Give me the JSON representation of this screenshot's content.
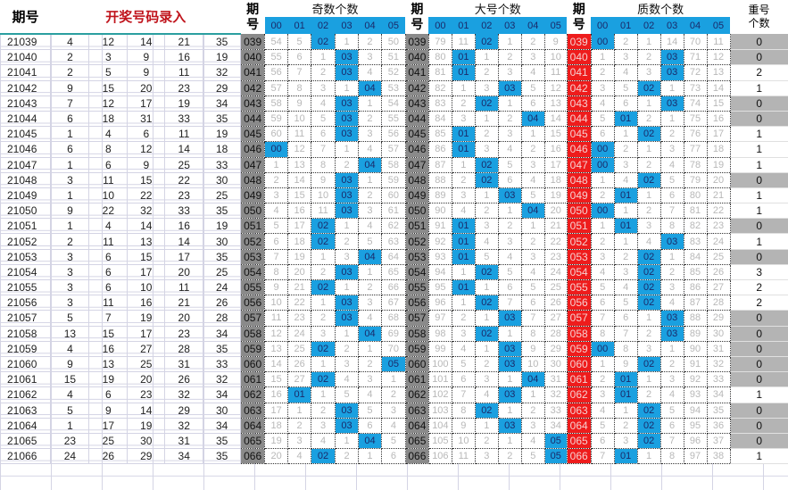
{
  "header": {
    "period_label": "期号",
    "input_label": "开奖号码录入",
    "period_short_top": "期",
    "period_short_bottom": "号",
    "sections": [
      {
        "title": "奇数个数",
        "key": "odd"
      },
      {
        "title": "大号个数",
        "key": "big"
      },
      {
        "title": "质数个数",
        "key": "prime"
      }
    ],
    "sub_columns": [
      "00",
      "01",
      "02",
      "03",
      "04",
      "05"
    ],
    "repeat_label_top": "重号",
    "repeat_label_bottom": "个数"
  },
  "colors": {
    "hit_blue": "#1aa0e0",
    "period_gray": "#8a8a8a",
    "period_red": "#ee1c1c",
    "title_red": "#c0141c",
    "repeat_zero_gray": "#b4b4b4"
  },
  "rows": [
    {
      "id": "21039",
      "nums": [
        4,
        12,
        14,
        21,
        35
      ],
      "short": "039",
      "odd": [
        "54",
        "5",
        "02",
        "1",
        "2",
        "50"
      ],
      "oddHit": 2,
      "big": [
        "79",
        "11",
        "02",
        "1",
        "2",
        "9"
      ],
      "bigHit": 2,
      "prime": [
        "00",
        "2",
        "1",
        "14",
        "70",
        "11"
      ],
      "primeHit": 0,
      "rep": "0"
    },
    {
      "id": "21040",
      "nums": [
        2,
        3,
        9,
        16,
        19
      ],
      "short": "040",
      "odd": [
        "55",
        "6",
        "1",
        "03",
        "3",
        "51"
      ],
      "oddHit": 3,
      "big": [
        "80",
        "01",
        "1",
        "2",
        "3",
        "10"
      ],
      "bigHit": 1,
      "prime": [
        "1",
        "3",
        "2",
        "03",
        "71",
        "12"
      ],
      "primeHit": 3,
      "rep": "0"
    },
    {
      "id": "21041",
      "nums": [
        2,
        5,
        9,
        11,
        32
      ],
      "short": "041",
      "odd": [
        "56",
        "7",
        "2",
        "03",
        "4",
        "52"
      ],
      "oddHit": 3,
      "big": [
        "81",
        "01",
        "2",
        "3",
        "4",
        "11"
      ],
      "bigHit": 1,
      "prime": [
        "2",
        "4",
        "3",
        "03",
        "72",
        "13"
      ],
      "primeHit": 3,
      "rep": "2"
    },
    {
      "id": "21042",
      "nums": [
        9,
        15,
        20,
        23,
        29
      ],
      "short": "042",
      "odd": [
        "57",
        "8",
        "3",
        "1",
        "04",
        "53"
      ],
      "oddHit": 4,
      "big": [
        "82",
        "1",
        "3",
        "03",
        "5",
        "12"
      ],
      "bigHit": 3,
      "prime": [
        "3",
        "5",
        "02",
        "1",
        "73",
        "14"
      ],
      "primeHit": 2,
      "rep": "1"
    },
    {
      "id": "21043",
      "nums": [
        7,
        12,
        17,
        19,
        34
      ],
      "short": "043",
      "odd": [
        "58",
        "9",
        "4",
        "03",
        "1",
        "54"
      ],
      "oddHit": 3,
      "big": [
        "83",
        "2",
        "02",
        "1",
        "6",
        "13"
      ],
      "bigHit": 2,
      "prime": [
        "4",
        "6",
        "1",
        "03",
        "74",
        "15"
      ],
      "primeHit": 3,
      "rep": "0"
    },
    {
      "id": "21044",
      "nums": [
        6,
        18,
        31,
        33,
        35
      ],
      "short": "044",
      "odd": [
        "59",
        "10",
        "5",
        "03",
        "2",
        "55"
      ],
      "oddHit": 3,
      "big": [
        "84",
        "3",
        "1",
        "2",
        "04",
        "14"
      ],
      "bigHit": 4,
      "prime": [
        "5",
        "01",
        "2",
        "1",
        "75",
        "16"
      ],
      "primeHit": 1,
      "rep": "0"
    },
    {
      "id": "21045",
      "nums": [
        1,
        4,
        6,
        11,
        19
      ],
      "short": "045",
      "odd": [
        "60",
        "11",
        "6",
        "03",
        "3",
        "56"
      ],
      "oddHit": 3,
      "big": [
        "85",
        "01",
        "2",
        "3",
        "1",
        "15"
      ],
      "bigHit": 1,
      "prime": [
        "6",
        "1",
        "02",
        "2",
        "76",
        "17"
      ],
      "primeHit": 2,
      "rep": "1"
    },
    {
      "id": "21046",
      "nums": [
        6,
        8,
        12,
        14,
        18
      ],
      "short": "046",
      "odd": [
        "00",
        "12",
        "7",
        "1",
        "4",
        "57"
      ],
      "oddHit": 0,
      "big": [
        "86",
        "01",
        "3",
        "4",
        "2",
        "16"
      ],
      "bigHit": 1,
      "prime": [
        "00",
        "2",
        "1",
        "3",
        "77",
        "18"
      ],
      "primeHit": 0,
      "rep": "1"
    },
    {
      "id": "21047",
      "nums": [
        1,
        6,
        9,
        25,
        33
      ],
      "short": "047",
      "odd": [
        "1",
        "13",
        "8",
        "2",
        "04",
        "58"
      ],
      "oddHit": 4,
      "big": [
        "87",
        "1",
        "02",
        "5",
        "3",
        "17"
      ],
      "bigHit": 2,
      "prime": [
        "00",
        "3",
        "2",
        "4",
        "78",
        "19"
      ],
      "primeHit": 0,
      "rep": "1"
    },
    {
      "id": "21048",
      "nums": [
        3,
        11,
        15,
        22,
        30
      ],
      "short": "048",
      "odd": [
        "2",
        "14",
        "9",
        "03",
        "1",
        "59"
      ],
      "oddHit": 3,
      "big": [
        "88",
        "2",
        "02",
        "6",
        "4",
        "18"
      ],
      "bigHit": 2,
      "prime": [
        "1",
        "4",
        "02",
        "5",
        "79",
        "20"
      ],
      "primeHit": 2,
      "rep": "0"
    },
    {
      "id": "21049",
      "nums": [
        1,
        10,
        22,
        23,
        25
      ],
      "short": "049",
      "odd": [
        "3",
        "15",
        "10",
        "03",
        "2",
        "60"
      ],
      "oddHit": 3,
      "big": [
        "89",
        "3",
        "1",
        "03",
        "5",
        "19"
      ],
      "bigHit": 3,
      "prime": [
        "2",
        "01",
        "1",
        "6",
        "80",
        "21"
      ],
      "primeHit": 1,
      "rep": "1"
    },
    {
      "id": "21050",
      "nums": [
        9,
        22,
        32,
        33,
        35
      ],
      "short": "050",
      "odd": [
        "4",
        "16",
        "11",
        "03",
        "3",
        "61"
      ],
      "oddHit": 3,
      "big": [
        "90",
        "4",
        "2",
        "1",
        "04",
        "20"
      ],
      "bigHit": 4,
      "prime": [
        "00",
        "1",
        "2",
        "7",
        "81",
        "22"
      ],
      "primeHit": 0,
      "rep": "1"
    },
    {
      "id": "21051",
      "nums": [
        1,
        4,
        14,
        16,
        19
      ],
      "short": "051",
      "odd": [
        "5",
        "17",
        "02",
        "1",
        "4",
        "62"
      ],
      "oddHit": 2,
      "big": [
        "91",
        "01",
        "3",
        "2",
        "1",
        "21"
      ],
      "bigHit": 1,
      "prime": [
        "1",
        "01",
        "3",
        "8",
        "82",
        "23"
      ],
      "primeHit": 1,
      "rep": "0"
    },
    {
      "id": "21052",
      "nums": [
        2,
        11,
        13,
        14,
        30
      ],
      "short": "052",
      "odd": [
        "6",
        "18",
        "02",
        "2",
        "5",
        "63"
      ],
      "oddHit": 2,
      "big": [
        "92",
        "01",
        "4",
        "3",
        "2",
        "22"
      ],
      "bigHit": 1,
      "prime": [
        "2",
        "1",
        "4",
        "03",
        "83",
        "24"
      ],
      "primeHit": 3,
      "rep": "1"
    },
    {
      "id": "21053",
      "nums": [
        3,
        6,
        15,
        17,
        35
      ],
      "short": "053",
      "odd": [
        "7",
        "19",
        "1",
        "3",
        "04",
        "64"
      ],
      "oddHit": 4,
      "big": [
        "93",
        "01",
        "5",
        "4",
        "3",
        "23"
      ],
      "bigHit": 1,
      "prime": [
        "3",
        "2",
        "02",
        "1",
        "84",
        "25"
      ],
      "primeHit": 2,
      "rep": "0"
    },
    {
      "id": "21054",
      "nums": [
        3,
        6,
        17,
        20,
        25
      ],
      "short": "054",
      "odd": [
        "8",
        "20",
        "2",
        "03",
        "1",
        "65"
      ],
      "oddHit": 3,
      "big": [
        "94",
        "1",
        "02",
        "5",
        "4",
        "24"
      ],
      "bigHit": 2,
      "prime": [
        "4",
        "3",
        "02",
        "2",
        "85",
        "26"
      ],
      "primeHit": 2,
      "rep": "3"
    },
    {
      "id": "21055",
      "nums": [
        3,
        6,
        10,
        11,
        24
      ],
      "short": "055",
      "odd": [
        "9",
        "21",
        "02",
        "1",
        "2",
        "66"
      ],
      "oddHit": 2,
      "big": [
        "95",
        "01",
        "1",
        "6",
        "5",
        "25"
      ],
      "bigHit": 1,
      "prime": [
        "5",
        "4",
        "02",
        "3",
        "86",
        "27"
      ],
      "primeHit": 2,
      "rep": "2"
    },
    {
      "id": "21056",
      "nums": [
        3,
        11,
        16,
        21,
        26
      ],
      "short": "056",
      "odd": [
        "10",
        "22",
        "1",
        "03",
        "3",
        "67"
      ],
      "oddHit": 3,
      "big": [
        "96",
        "1",
        "02",
        "7",
        "6",
        "26"
      ],
      "bigHit": 2,
      "prime": [
        "6",
        "5",
        "02",
        "4",
        "87",
        "28"
      ],
      "primeHit": 2,
      "rep": "2"
    },
    {
      "id": "21057",
      "nums": [
        5,
        7,
        19,
        20,
        28
      ],
      "short": "057",
      "odd": [
        "11",
        "23",
        "2",
        "03",
        "4",
        "68"
      ],
      "oddHit": 3,
      "big": [
        "97",
        "2",
        "1",
        "03",
        "7",
        "27"
      ],
      "bigHit": 3,
      "prime": [
        "7",
        "6",
        "1",
        "03",
        "88",
        "29"
      ],
      "primeHit": 3,
      "rep": "0"
    },
    {
      "id": "21058",
      "nums": [
        13,
        15,
        17,
        23,
        34
      ],
      "short": "058",
      "odd": [
        "12",
        "24",
        "3",
        "1",
        "04",
        "69"
      ],
      "oddHit": 4,
      "big": [
        "98",
        "3",
        "02",
        "1",
        "8",
        "28"
      ],
      "bigHit": 2,
      "prime": [
        "8",
        "7",
        "2",
        "03",
        "89",
        "30"
      ],
      "primeHit": 3,
      "rep": "0"
    },
    {
      "id": "21059",
      "nums": [
        4,
        16,
        27,
        28,
        35
      ],
      "short": "059",
      "odd": [
        "13",
        "25",
        "02",
        "2",
        "1",
        "70"
      ],
      "oddHit": 2,
      "big": [
        "99",
        "4",
        "1",
        "03",
        "9",
        "29"
      ],
      "bigHit": 3,
      "prime": [
        "00",
        "8",
        "3",
        "1",
        "90",
        "31"
      ],
      "primeHit": 0,
      "rep": "0"
    },
    {
      "id": "21060",
      "nums": [
        9,
        13,
        25,
        31,
        33
      ],
      "short": "060",
      "odd": [
        "14",
        "26",
        "1",
        "3",
        "2",
        "05"
      ],
      "oddHit": 5,
      "big": [
        "100",
        "5",
        "2",
        "03",
        "10",
        "30"
      ],
      "bigHit": 3,
      "prime": [
        "1",
        "9",
        "02",
        "2",
        "91",
        "32"
      ],
      "primeHit": 2,
      "rep": "0"
    },
    {
      "id": "21061",
      "nums": [
        15,
        19,
        20,
        26,
        32
      ],
      "short": "061",
      "odd": [
        "15",
        "27",
        "02",
        "4",
        "3",
        "1"
      ],
      "oddHit": 2,
      "big": [
        "101",
        "6",
        "3",
        "1",
        "04",
        "31"
      ],
      "bigHit": 4,
      "prime": [
        "2",
        "01",
        "1",
        "3",
        "92",
        "33"
      ],
      "primeHit": 1,
      "rep": "0"
    },
    {
      "id": "21062",
      "nums": [
        4,
        6,
        23,
        32,
        34
      ],
      "short": "062",
      "odd": [
        "16",
        "01",
        "1",
        "5",
        "4",
        "2"
      ],
      "oddHit": 1,
      "big": [
        "102",
        "7",
        "4",
        "03",
        "1",
        "32"
      ],
      "bigHit": 3,
      "prime": [
        "3",
        "01",
        "2",
        "4",
        "93",
        "34"
      ],
      "primeHit": 1,
      "rep": "1"
    },
    {
      "id": "21063",
      "nums": [
        5,
        9,
        14,
        29,
        30
      ],
      "short": "063",
      "odd": [
        "17",
        "1",
        "2",
        "03",
        "5",
        "3"
      ],
      "oddHit": 3,
      "big": [
        "103",
        "8",
        "02",
        "1",
        "2",
        "33"
      ],
      "bigHit": 2,
      "prime": [
        "4",
        "1",
        "02",
        "5",
        "94",
        "35"
      ],
      "primeHit": 2,
      "rep": "0"
    },
    {
      "id": "21064",
      "nums": [
        1,
        17,
        19,
        32,
        34
      ],
      "short": "064",
      "odd": [
        "18",
        "2",
        "3",
        "03",
        "6",
        "4"
      ],
      "oddHit": 3,
      "big": [
        "104",
        "9",
        "1",
        "03",
        "3",
        "34"
      ],
      "bigHit": 3,
      "prime": [
        "5",
        "2",
        "02",
        "6",
        "95",
        "36"
      ],
      "primeHit": 2,
      "rep": "0"
    },
    {
      "id": "21065",
      "nums": [
        23,
        25,
        30,
        31,
        35
      ],
      "short": "065",
      "odd": [
        "19",
        "3",
        "4",
        "1",
        "04",
        "5"
      ],
      "oddHit": 4,
      "big": [
        "105",
        "10",
        "2",
        "1",
        "4",
        "05"
      ],
      "bigHit": 5,
      "prime": [
        "6",
        "3",
        "02",
        "7",
        "96",
        "37"
      ],
      "primeHit": 2,
      "rep": "0"
    },
    {
      "id": "21066",
      "nums": [
        24,
        26,
        29,
        34,
        35
      ],
      "short": "066",
      "odd": [
        "20",
        "4",
        "02",
        "2",
        "1",
        "6"
      ],
      "oddHit": 2,
      "big": [
        "106",
        "11",
        "3",
        "2",
        "5",
        "05"
      ],
      "bigHit": 5,
      "prime": [
        "7",
        "01",
        "1",
        "8",
        "97",
        "38"
      ],
      "primeHit": 1,
      "rep": "1"
    }
  ]
}
